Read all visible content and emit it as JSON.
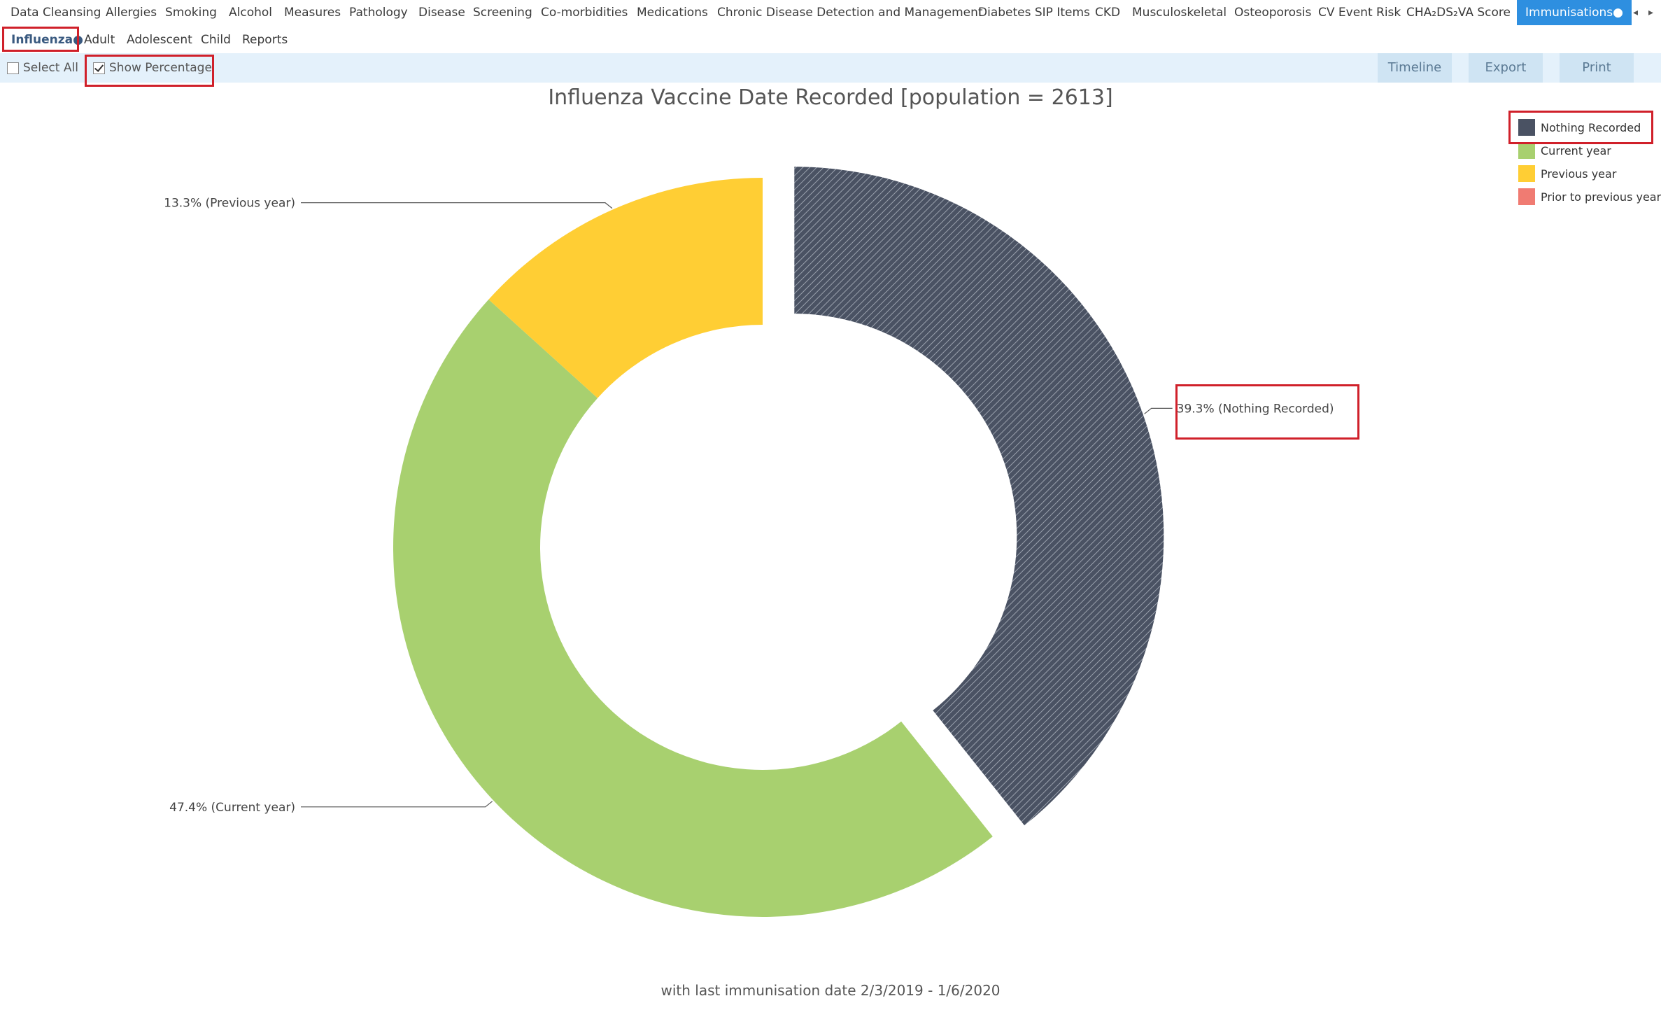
{
  "top_nav": {
    "tabs": [
      "Data Cleansing",
      "Allergies",
      "Smoking",
      "Alcohol",
      "Measures",
      "Pathology",
      "Disease",
      "Screening",
      "Co-morbidities",
      "Medications",
      "Chronic Disease Detection and Management",
      "Diabetes SIP Items",
      "CKD",
      "Musculoskeletal",
      "Osteoporosis",
      "CV Event Risk",
      "CHA₂DS₂VA Score"
    ],
    "active_tab": "Immunisations●",
    "scroll_left": "◂",
    "scroll_right": "▸"
  },
  "sub_nav": {
    "active_tab": "Influenza●",
    "tabs": [
      "Adult",
      "Adolescent",
      "Child",
      "Reports"
    ]
  },
  "toolbar": {
    "select_all": {
      "label": "Select All",
      "checked": false
    },
    "show_percentage": {
      "label": "Show Percentage",
      "checked": true
    },
    "buttons": [
      "Timeline",
      "Export",
      "Print"
    ]
  },
  "chart_title": "Influenza Vaccine Date Recorded [population = 2613]",
  "chart_subtitle": "with last immunisation date 2/3/2019 - 1/6/2020",
  "legend": [
    {
      "label": "Nothing Recorded",
      "color": "#4a5263"
    },
    {
      "label": "Current year",
      "color": "#a8d06f"
    },
    {
      "label": "Previous year",
      "color": "#ffce34"
    },
    {
      "label": "Prior to previous year",
      "color": "#f07b72"
    }
  ],
  "chart_data": {
    "type": "pie",
    "title": "Influenza Vaccine Date Recorded [population = 2613]",
    "subtitle": "with last immunisation date 2/3/2019 - 1/6/2020",
    "legend_position": "top-right",
    "labels": [
      "Nothing Recorded",
      "Current year",
      "Previous year",
      "Prior to previous year"
    ],
    "values": [
      39.3,
      47.4,
      13.3,
      0
    ],
    "unit": "%",
    "colors": [
      "#4a5263",
      "#a8d06f",
      "#ffce34",
      "#f07b72"
    ],
    "data_labels": [
      "39.3% (Nothing Recorded)",
      "47.4% (Current year)",
      "13.3% (Previous year)",
      ""
    ],
    "exploded": [
      "Nothing Recorded"
    ],
    "donut": true
  }
}
